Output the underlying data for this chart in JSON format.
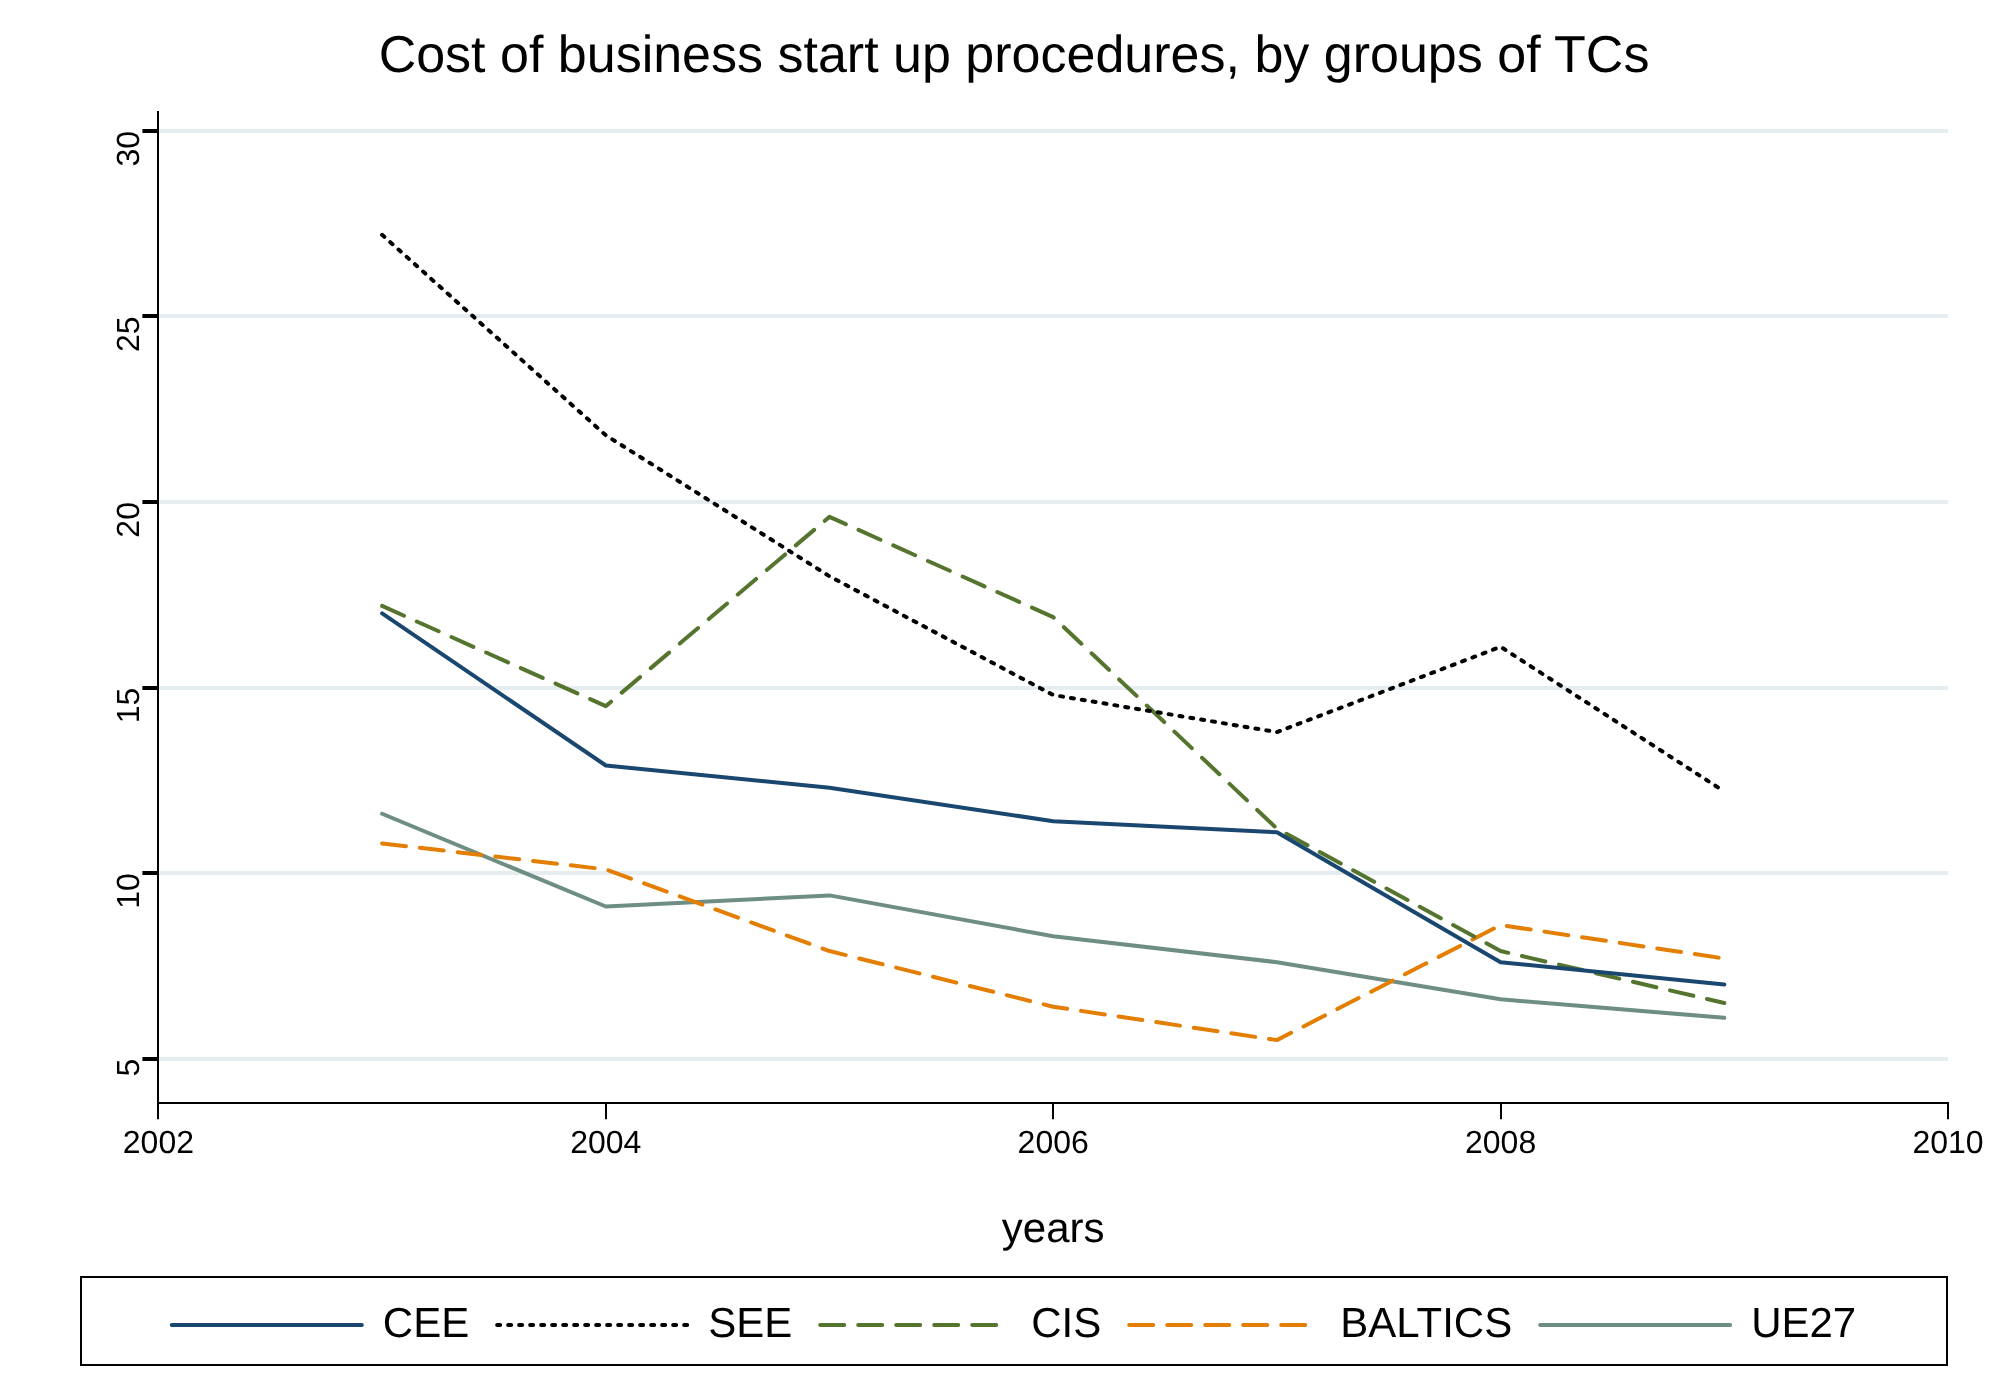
{
  "chart_data": {
    "type": "line",
    "title": "Cost of business start up procedures, by groups of TCs",
    "xlabel": "years",
    "x": [
      2003,
      2004,
      2005,
      2006,
      2007,
      2008,
      2009
    ],
    "xlim": [
      2002,
      2010
    ],
    "xticks": [
      2002,
      2004,
      2006,
      2008,
      2010
    ],
    "ylim": [
      3.8,
      30.5
    ],
    "yticks": [
      5,
      10,
      15,
      20,
      25,
      30
    ],
    "grid": "y",
    "legend": "bottom",
    "marker": "none",
    "series": [
      {
        "name": "CEE",
        "color": "#1a476f",
        "line_style": "solid",
        "values": [
          17.0,
          12.9,
          12.3,
          11.4,
          11.1,
          7.6,
          7.0
        ]
      },
      {
        "name": "SEE",
        "color": "#000000",
        "line_style": "dotted",
        "values": [
          27.2,
          21.8,
          18.0,
          14.8,
          13.8,
          16.1,
          12.2
        ]
      },
      {
        "name": "CIS",
        "color": "#55752f",
        "line_style": "dashed",
        "values": [
          17.2,
          14.5,
          19.6,
          16.9,
          11.2,
          7.9,
          6.5
        ]
      },
      {
        "name": "BALTICS",
        "color": "#e37e00",
        "line_style": "dashed",
        "values": [
          10.8,
          10.1,
          7.9,
          6.4,
          5.5,
          8.6,
          7.7
        ]
      },
      {
        "name": "UE27",
        "color": "#6e8e84",
        "line_style": "solid",
        "values": [
          11.6,
          9.1,
          9.4,
          8.3,
          7.6,
          6.6,
          6.1
        ]
      }
    ]
  }
}
